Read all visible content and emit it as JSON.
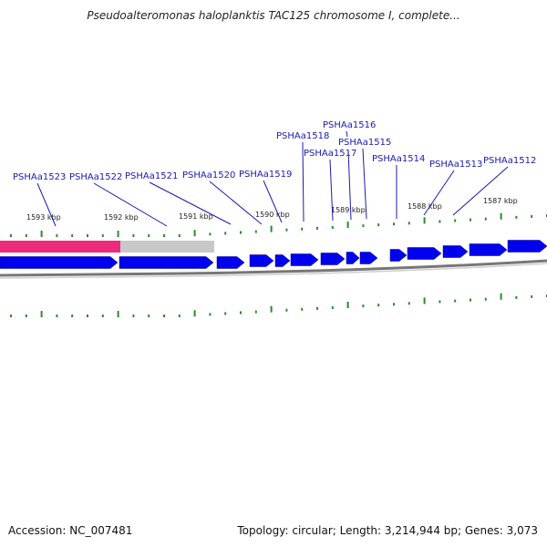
{
  "map": {
    "title": "Pseudoalteromonas haloplanktis TAC125 chromosome I, complete...",
    "accession_text": "Accession: NC_007481",
    "stats_text": "Topology: circular; Length: 3,214,944 bp; Genes: 3,073"
  },
  "gene_labels": [
    "PSHAa1523",
    "PSHAa1522",
    "PSHAa1521",
    "PSHAa1520",
    "PSHAa1519",
    "PSHAa1518",
    "PSHAa1517",
    "PSHAa1516",
    "PSHAa1515",
    "PSHAa1514",
    "PSHAa1513",
    "PSHAa1512"
  ],
  "kbp_labels": [
    "1593 kbp",
    "1592 kbp",
    "1591 kbp",
    "1590 kbp",
    "1589 kbp",
    "1588 kbp",
    "1587 kbp"
  ],
  "colors": {
    "gene": "#0000ee",
    "label": "#1a1ab4",
    "tick": "#2a8a2a",
    "highlight": "#ee2a7b",
    "selection": "#c8c8c8",
    "backbone": "#777777"
  }
}
